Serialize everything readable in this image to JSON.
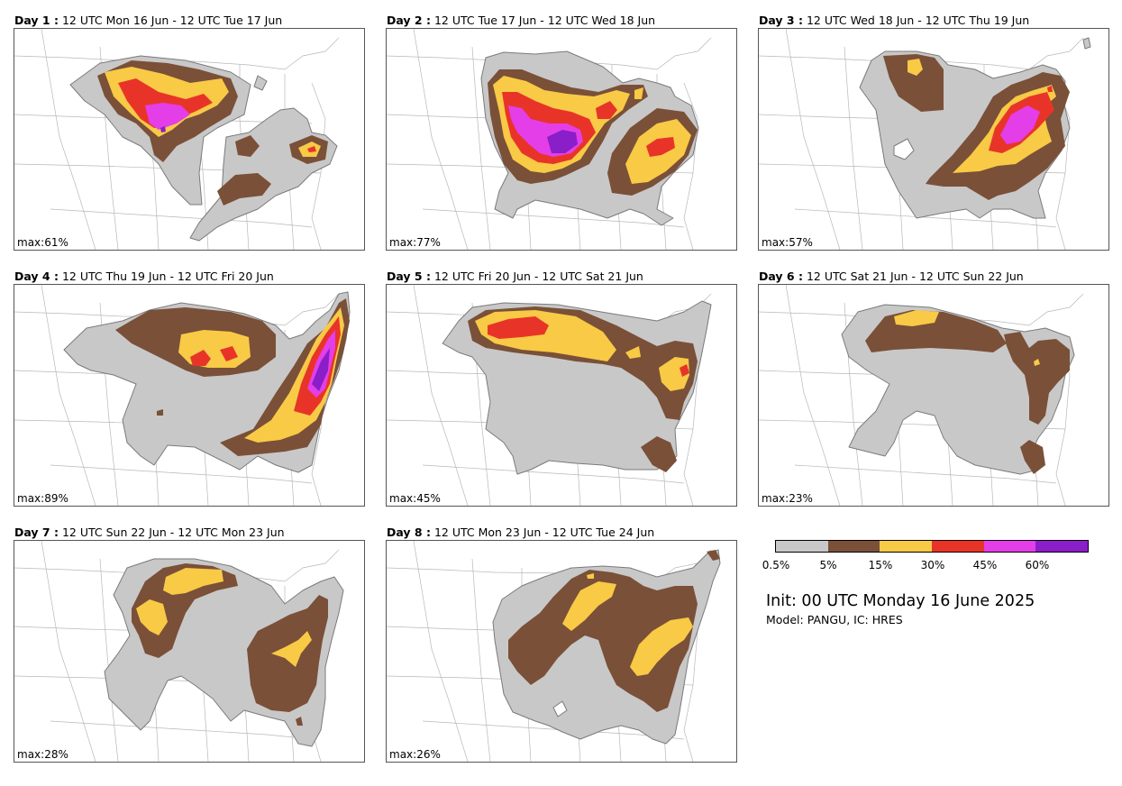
{
  "colors": {
    "c1": "#c8c8c8",
    "c2": "#7a5038",
    "c3": "#f8ca46",
    "c4": "#e83428",
    "c5": "#e43ee8",
    "c6": "#8a1ec8",
    "outline": "#7a7a7a",
    "border": "#b8b8b8"
  },
  "panels": [
    {
      "day": "Day 1 :",
      "period": "12 UTC Mon 16 Jun - 12 UTC Tue 17 Jun",
      "max": "max:61%"
    },
    {
      "day": "Day 2 :",
      "period": "12 UTC Tue 17 Jun - 12 UTC Wed 18 Jun",
      "max": "max:77%"
    },
    {
      "day": "Day 3 :",
      "period": "12 UTC Wed 18 Jun - 12 UTC Thu 19 Jun",
      "max": "max:57%"
    },
    {
      "day": "Day 4 :",
      "period": "12 UTC Thu 19 Jun - 12 UTC Fri 20 Jun",
      "max": "max:89%"
    },
    {
      "day": "Day 5 :",
      "period": "12 UTC Fri 20 Jun - 12 UTC Sat 21 Jun",
      "max": "max:45%"
    },
    {
      "day": "Day 6 :",
      "period": "12 UTC Sat 21 Jun - 12 UTC Sun 22 Jun",
      "max": "max:23%"
    },
    {
      "day": "Day 7 :",
      "period": "12 UTC Sun 22 Jun - 12 UTC Mon 23 Jun",
      "max": "max:28%"
    },
    {
      "day": "Day 8 :",
      "period": "12 UTC Mon 23 Jun - 12 UTC Tue 24 Jun",
      "max": "max:26%"
    }
  ],
  "legend": {
    "ticks": [
      "0.5%",
      "5%",
      "15%",
      "30%",
      "45%",
      "60%"
    ]
  },
  "init_text": "Init: 00 UTC Monday 16 June 2025",
  "model_text": "Model: PANGU, IC: HRES"
}
